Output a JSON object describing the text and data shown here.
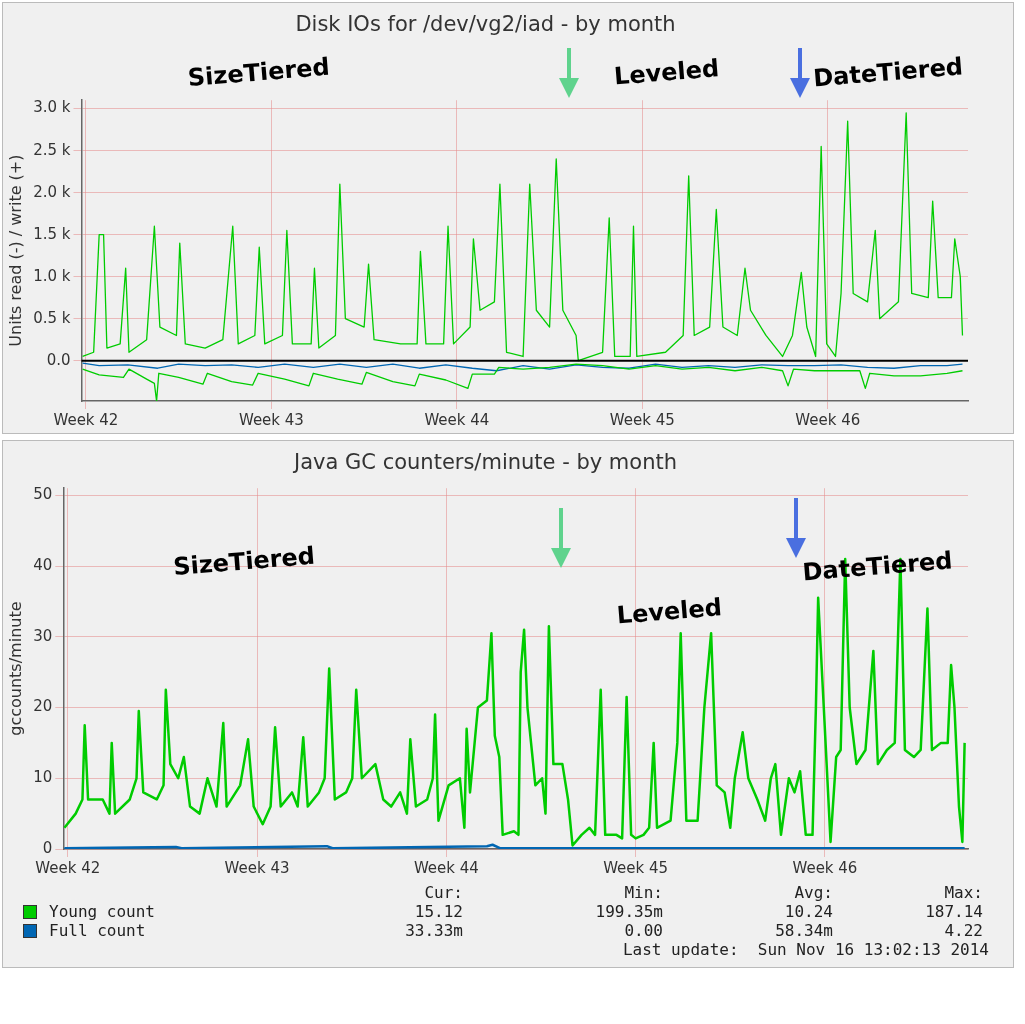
{
  "chart_data": [
    {
      "type": "line",
      "title": "Disk IOs for /dev/vg2/iad - by month",
      "ylabel": "Units read (-) / write (+)",
      "xlim": [
        "2014-10-12T20:00",
        "2014-11-15T07:00"
      ],
      "xticks": [
        {
          "value": "2014-10-13",
          "label": "Week 42"
        },
        {
          "value": "2014-10-20",
          "label": "Week 43"
        },
        {
          "value": "2014-10-27",
          "label": "Week 44"
        },
        {
          "value": "2014-11-03",
          "label": "Week 45"
        },
        {
          "value": "2014-11-10",
          "label": "Week 46"
        }
      ],
      "ylim": [
        -480,
        3100
      ],
      "yticks": [
        {
          "value": 0,
          "label": "0.0"
        },
        {
          "value": 500,
          "label": "0.5 k"
        },
        {
          "value": 1000,
          "label": "1.0 k"
        },
        {
          "value": 1500,
          "label": "1.5 k"
        },
        {
          "value": 2000,
          "label": "2.0 k"
        },
        {
          "value": 2500,
          "label": "2.5 k"
        },
        {
          "value": 3000,
          "label": "3.0 k"
        }
      ],
      "grid": true,
      "ref_lines": [
        {
          "axis": "y",
          "value": 0,
          "color": "#000000"
        }
      ],
      "annotations": [
        "SizeTiered",
        "Leveled",
        "DateTiered"
      ],
      "series": [
        {
          "color": "#00cc00",
          "x": [
            "2014-10-12T21:00",
            "2014-10-13T07:00",
            "2014-10-13T12:00",
            "2014-10-13T16:00",
            "2014-10-13T19:00",
            "2014-10-14T07:00",
            "2014-10-14T12:00",
            "2014-10-14T15:00",
            "2014-10-15T07:00",
            "2014-10-15T14:00",
            "2014-10-15T19:00",
            "2014-10-16T10:00",
            "2014-10-16T13:00",
            "2014-10-16T18:00",
            "2014-10-17T12:00",
            "2014-10-18T04:00",
            "2014-10-18T13:00",
            "2014-10-18T18:00",
            "2014-10-19T09:00",
            "2014-10-19T13:00",
            "2014-10-19T18:00",
            "2014-10-20T10:00",
            "2014-10-20T14:00",
            "2014-10-20T19:00",
            "2014-10-21T12:00",
            "2014-10-21T15:00",
            "2014-10-21T19:00",
            "2014-10-22T10:00",
            "2014-10-22T14:00",
            "2014-10-22T19:00",
            "2014-10-23T12:00",
            "2014-10-23T16:00",
            "2014-10-23T21:00",
            "2014-10-24T21:00",
            "2014-10-25T12:00",
            "2014-10-25T15:00",
            "2014-10-25T20:00",
            "2014-10-26T12:00",
            "2014-10-26T16:00",
            "2014-10-26T21:00",
            "2014-10-27T12:00",
            "2014-10-27T15:00",
            "2014-10-27T21:00",
            "2014-10-28T10:00",
            "2014-10-28T15:00",
            "2014-10-28T21:00",
            "2014-10-29T12:00",
            "2014-10-29T18:00",
            "2014-10-30T00:00",
            "2014-10-30T12:00",
            "2014-10-30T18:00",
            "2014-10-31T00:00",
            "2014-10-31T12:00",
            "2014-10-31T14:00",
            "2014-11-01T12:00",
            "2014-11-01T18:00",
            "2014-11-01T23:00",
            "2014-11-02T13:00",
            "2014-11-02T16:00",
            "2014-11-02T19:00",
            "2014-11-03T21:00",
            "2014-11-04T13:00",
            "2014-11-04T18:00",
            "2014-11-04T23:00",
            "2014-11-05T13:00",
            "2014-11-05T19:00",
            "2014-11-06T01:00",
            "2014-11-06T14:00",
            "2014-11-06T21:00",
            "2014-11-07T02:00",
            "2014-11-07T16:00",
            "2014-11-08T07:00",
            "2014-11-08T16:00",
            "2014-11-09T00:00",
            "2014-11-09T05:00",
            "2014-11-09T13:00",
            "2014-11-09T18:00",
            "2014-11-09T23:00",
            "2014-11-10T07:00",
            "2014-11-10T12:00",
            "2014-11-10T18:00",
            "2014-11-10T23:00",
            "2014-11-11T12:00",
            "2014-11-11T19:00",
            "2014-11-11T23:00",
            "2014-11-12T16:00",
            "2014-11-12T23:00",
            "2014-11-13T04:00",
            "2014-11-13T19:00",
            "2014-11-13T23:00",
            "2014-11-14T04:00",
            "2014-11-14T16:00",
            "2014-11-14T19:00",
            "2014-11-15T00:00",
            "2014-11-15T02:00"
          ],
          "values": [
            50,
            100,
            1500,
            1500,
            150,
            200,
            1100,
            100,
            250,
            1600,
            400,
            300,
            1400,
            200,
            150,
            250,
            1600,
            200,
            300,
            1350,
            200,
            300,
            1550,
            200,
            200,
            1100,
            150,
            300,
            2100,
            500,
            400,
            1150,
            250,
            200,
            200,
            1300,
            200,
            200,
            1600,
            200,
            400,
            1450,
            600,
            700,
            2100,
            100,
            50,
            2100,
            600,
            400,
            2400,
            600,
            300,
            0,
            100,
            1700,
            50,
            50,
            1600,
            50,
            100,
            300,
            2200,
            300,
            400,
            1800,
            400,
            300,
            1100,
            600,
            300,
            50,
            300,
            1050,
            400,
            50,
            2550,
            200,
            50,
            800,
            2850,
            800,
            700,
            1550,
            500,
            700,
            2950,
            800,
            750,
            1900,
            750,
            750,
            1450,
            1000,
            300
          ]
        },
        {
          "color": "#00cc00",
          "x": [
            "2014-10-12T21:00",
            "2014-10-13T12:00",
            "2014-10-14T10:00",
            "2014-10-14T15:00",
            "2014-10-15T07:00",
            "2014-10-15T14:00",
            "2014-10-15T16:00",
            "2014-10-15T18:00",
            "2014-10-16T12:00",
            "2014-10-17T10:00",
            "2014-10-17T14:00",
            "2014-10-18T12:00",
            "2014-10-19T07:00",
            "2014-10-19T12:00",
            "2014-10-20T12:00",
            "2014-10-21T10:00",
            "2014-10-21T14:00",
            "2014-10-22T12:00",
            "2014-10-23T10:00",
            "2014-10-23T14:00",
            "2014-10-24T14:00",
            "2014-10-25T10:00",
            "2014-10-25T14:00",
            "2014-10-26T14:00",
            "2014-10-27T10:00",
            "2014-10-27T14:00",
            "2014-10-28T10:00",
            "2014-10-28T14:00",
            "2014-10-29T12:00",
            "2014-10-30T12:00",
            "2014-10-31T12:00",
            "2014-11-01T12:00",
            "2014-11-02T12:00",
            "2014-11-03T12:00",
            "2014-11-04T12:00",
            "2014-11-05T12:00",
            "2014-11-06T12:00",
            "2014-11-07T12:00",
            "2014-11-08T07:00",
            "2014-11-08T12:00",
            "2014-11-08T17:00",
            "2014-11-09T12:00",
            "2014-11-10T12:00",
            "2014-11-11T05:00",
            "2014-11-11T10:00",
            "2014-11-11T14:00",
            "2014-11-12T12:00",
            "2014-11-13T12:00",
            "2014-11-14T12:00",
            "2014-11-15T02:00"
          ],
          "values": [
            -100,
            -170,
            -200,
            -100,
            -220,
            -270,
            -480,
            -150,
            -200,
            -280,
            -150,
            -250,
            -290,
            -150,
            -220,
            -300,
            -150,
            -220,
            -280,
            -140,
            -250,
            -300,
            -160,
            -230,
            -330,
            -160,
            -160,
            -80,
            -100,
            -80,
            -40,
            -60,
            -100,
            -60,
            -100,
            -80,
            -120,
            -80,
            -120,
            -300,
            -100,
            -120,
            -120,
            -120,
            -330,
            -150,
            -180,
            -180,
            -150,
            -120
          ]
        },
        {
          "color": "#0066b3",
          "x": [
            "2014-10-12T21:00",
            "2014-10-13T12:00",
            "2014-10-14T14:00",
            "2014-10-15T17:00",
            "2014-10-16T12:00",
            "2014-10-17T12:00",
            "2014-10-18T12:00",
            "2014-10-19T12:00",
            "2014-10-20T12:00",
            "2014-10-21T14:00",
            "2014-10-22T14:00",
            "2014-10-23T14:00",
            "2014-10-24T14:00",
            "2014-10-25T14:00",
            "2014-10-26T14:00",
            "2014-10-27T14:00",
            "2014-10-28T12:00",
            "2014-10-29T12:00",
            "2014-10-30T12:00",
            "2014-10-31T12:00",
            "2014-11-01T12:00",
            "2014-11-02T12:00",
            "2014-11-03T12:00",
            "2014-11-04T12:00",
            "2014-11-05T12:00",
            "2014-11-06T12:00",
            "2014-11-07T12:00",
            "2014-11-08T12:00",
            "2014-11-09T12:00",
            "2014-11-10T12:00",
            "2014-11-11T12:00",
            "2014-11-12T12:00",
            "2014-11-13T12:00",
            "2014-11-14T12:00",
            "2014-11-15T02:00"
          ],
          "values": [
            -30,
            -60,
            -50,
            -90,
            -40,
            -60,
            -50,
            -80,
            -40,
            -80,
            -40,
            -80,
            -40,
            -90,
            -50,
            -90,
            -120,
            -60,
            -100,
            -50,
            -80,
            -90,
            -40,
            -80,
            -60,
            -80,
            -50,
            -60,
            -60,
            -50,
            -80,
            -90,
            -60,
            -60,
            -40
          ]
        }
      ]
    },
    {
      "type": "line",
      "title": "Java GC counters/minute - by month",
      "ylabel": "gccounts/minute",
      "xlim": [
        "2014-10-12T20:00",
        "2014-11-15T07:00"
      ],
      "xticks": [
        {
          "value": "2014-10-13",
          "label": "Week 42"
        },
        {
          "value": "2014-10-20",
          "label": "Week 43"
        },
        {
          "value": "2014-10-27",
          "label": "Week 44"
        },
        {
          "value": "2014-11-03",
          "label": "Week 45"
        },
        {
          "value": "2014-11-10",
          "label": "Week 46"
        }
      ],
      "ylim": [
        0,
        51
      ],
      "yticks": [
        0,
        10,
        20,
        30,
        40,
        50
      ],
      "grid": true,
      "legend": "bottom",
      "annotations": [
        "SizeTiered",
        "Leveled",
        "DateTiered",
        "Cur:",
        "Min:",
        "Avg:",
        "Max:",
        "15.12",
        "199.35m",
        "10.24",
        "187.14",
        "33.33m",
        "0.00",
        "58.34m",
        "4.22",
        "Last update:  Sun Nov 16 13:02:13 2014"
      ],
      "series": [
        {
          "name": "Young count",
          "color": "#00cc00",
          "x": [
            "2014-10-12T21:00",
            "2014-10-13T07:00",
            "2014-10-13T13:00",
            "2014-10-13T15:00",
            "2014-10-13T18:00",
            "2014-10-14T07:00",
            "2014-10-14T13:00",
            "2014-10-14T15:00",
            "2014-10-14T18:00",
            "2014-10-15T07:00",
            "2014-10-15T13:00",
            "2014-10-15T15:00",
            "2014-10-15T19:00",
            "2014-10-16T07:00",
            "2014-10-16T13:00",
            "2014-10-16T15:00",
            "2014-10-16T19:00",
            "2014-10-17T02:00",
            "2014-10-17T07:00",
            "2014-10-17T12:30",
            "2014-10-17T21:00",
            "2014-10-18T04:00",
            "2014-10-18T12:00",
            "2014-10-18T18:00",
            "2014-10-18T21:00",
            "2014-10-19T09:00",
            "2014-10-19T16:00",
            "2014-10-19T21:00",
            "2014-10-20T05:00",
            "2014-10-20T12:00",
            "2014-10-20T16:00",
            "2014-10-20T21:00",
            "2014-10-21T07:00",
            "2014-10-21T12:00",
            "2014-10-21T17:00",
            "2014-10-21T21:00",
            "2014-10-22T07:00",
            "2014-10-22T12:00",
            "2014-10-22T16:00",
            "2014-10-22T21:00",
            "2014-10-23T07:00",
            "2014-10-23T12:30",
            "2014-10-23T16:00",
            "2014-10-23T21:00",
            "2014-10-24T09:00",
            "2014-10-24T16:00",
            "2014-10-24T23:00",
            "2014-10-25T07:00",
            "2014-10-25T13:00",
            "2014-10-25T16:00",
            "2014-10-25T21:00",
            "2014-10-26T07:00",
            "2014-10-26T12:00",
            "2014-10-26T14:00",
            "2014-10-26T17:00",
            "2014-10-27T02:00",
            "2014-10-27T12:00",
            "2014-10-27T16:00",
            "2014-10-27T18:00",
            "2014-10-27T21:00",
            "2014-10-28T04:00",
            "2014-10-28T12:00",
            "2014-10-28T16:00",
            "2014-10-28T19:00",
            "2014-10-28T23:00",
            "2014-10-29T02:00",
            "2014-10-29T12:00",
            "2014-10-29T16:00",
            "2014-10-29T18:00",
            "2014-10-29T21:00",
            "2014-10-30T00:00",
            "2014-10-30T07:00",
            "2014-10-30T13:00",
            "2014-10-30T16:00",
            "2014-10-30T19:00",
            "2014-10-30T23:00",
            "2014-10-31T07:00",
            "2014-10-31T12:00",
            "2014-10-31T16:00",
            "2014-11-01T00:00",
            "2014-11-01T07:00",
            "2014-11-01T12:00",
            "2014-11-01T17:00",
            "2014-11-01T21:00",
            "2014-11-02T07:00",
            "2014-11-02T12:00",
            "2014-11-02T16:00",
            "2014-11-02T20:00",
            "2014-11-03T00:00",
            "2014-11-03T07:00",
            "2014-11-03T12:00",
            "2014-11-03T16:00",
            "2014-11-03T19:00",
            "2014-11-04T07:00",
            "2014-11-04T13:00",
            "2014-11-04T16:00",
            "2014-11-04T21:00",
            "2014-11-05T07:00",
            "2014-11-05T13:00",
            "2014-11-05T19:00",
            "2014-11-06T00:00",
            "2014-11-06T07:00",
            "2014-11-06T12:00",
            "2014-11-06T16:00",
            "2014-11-06T23:00",
            "2014-11-07T04:00",
            "2014-11-07T12:00",
            "2014-11-07T19:00",
            "2014-11-08T00:00",
            "2014-11-08T04:00",
            "2014-11-08T09:00",
            "2014-11-08T16:00",
            "2014-11-08T21:00",
            "2014-11-09T02:00",
            "2014-11-09T07:00",
            "2014-11-09T13:00",
            "2014-11-09T16:00",
            "2014-11-09T18:00",
            "2014-11-09T23:00",
            "2014-11-10T05:00",
            "2014-11-10T10:00",
            "2014-11-10T14:00",
            "2014-11-10T18:00",
            "2014-11-10T22:00",
            "2014-11-11T04:00",
            "2014-11-11T12:00",
            "2014-11-11T19:00",
            "2014-11-11T23:00",
            "2014-11-12T07:00",
            "2014-11-12T14:00",
            "2014-11-12T19:00",
            "2014-11-12T23:00",
            "2014-11-13T07:00",
            "2014-11-13T13:00",
            "2014-11-13T16:00",
            "2014-11-13T19:00",
            "2014-11-13T23:00",
            "2014-11-14T07:00",
            "2014-11-14T13:00",
            "2014-11-14T16:00",
            "2014-11-14T19:00",
            "2014-11-14T23:00",
            "2014-11-15T02:00",
            "2014-11-15T04:00"
          ],
          "values": [
            3,
            5,
            7,
            17.5,
            7,
            7,
            5,
            15,
            5,
            7,
            10,
            19.5,
            8,
            7,
            9,
            22.5,
            12,
            10,
            13,
            6,
            5,
            10,
            6,
            17.8,
            6,
            9,
            15.5,
            6,
            3.5,
            6,
            17.2,
            6,
            8,
            6,
            15.8,
            6,
            8,
            10,
            25.5,
            7,
            8,
            10,
            22.5,
            10,
            12,
            7,
            6,
            8,
            5,
            15.5,
            6,
            7,
            10,
            19,
            4,
            9,
            10,
            3,
            17,
            8,
            20,
            21,
            30.5,
            16,
            13,
            2,
            2.5,
            2,
            25,
            31,
            20,
            9,
            10,
            5,
            31.5,
            12,
            12,
            7,
            0.5,
            2,
            3,
            2,
            22.5,
            2,
            2,
            1.5,
            21.5,
            2,
            1.5,
            2,
            3,
            15,
            3,
            4,
            15,
            30.5,
            4,
            4,
            20,
            30.5,
            9,
            8,
            3,
            10,
            16.5,
            10,
            7,
            4,
            10,
            12,
            2,
            10,
            8,
            11,
            2,
            2,
            20,
            35.5,
            20,
            1,
            13,
            14,
            41,
            20,
            12,
            14,
            28,
            12,
            14,
            15,
            41,
            14,
            13,
            14,
            24,
            34,
            14,
            15,
            15,
            26,
            20,
            6,
            1,
            15
          ]
        },
        {
          "name": "Full count",
          "color": "#0066b3",
          "x": [
            "2014-10-12T21:00",
            "2014-10-17T00:00",
            "2014-10-17T05:00",
            "2014-10-22T14:00",
            "2014-10-22T19:00",
            "2014-10-28T12:00",
            "2014-10-28T17:00",
            "2014-10-29T00:00",
            "2014-11-15T04:00"
          ],
          "values": [
            0.1,
            0.3,
            0.1,
            0.4,
            0.1,
            0.4,
            0.6,
            0.1,
            0.1
          ]
        }
      ]
    }
  ]
}
